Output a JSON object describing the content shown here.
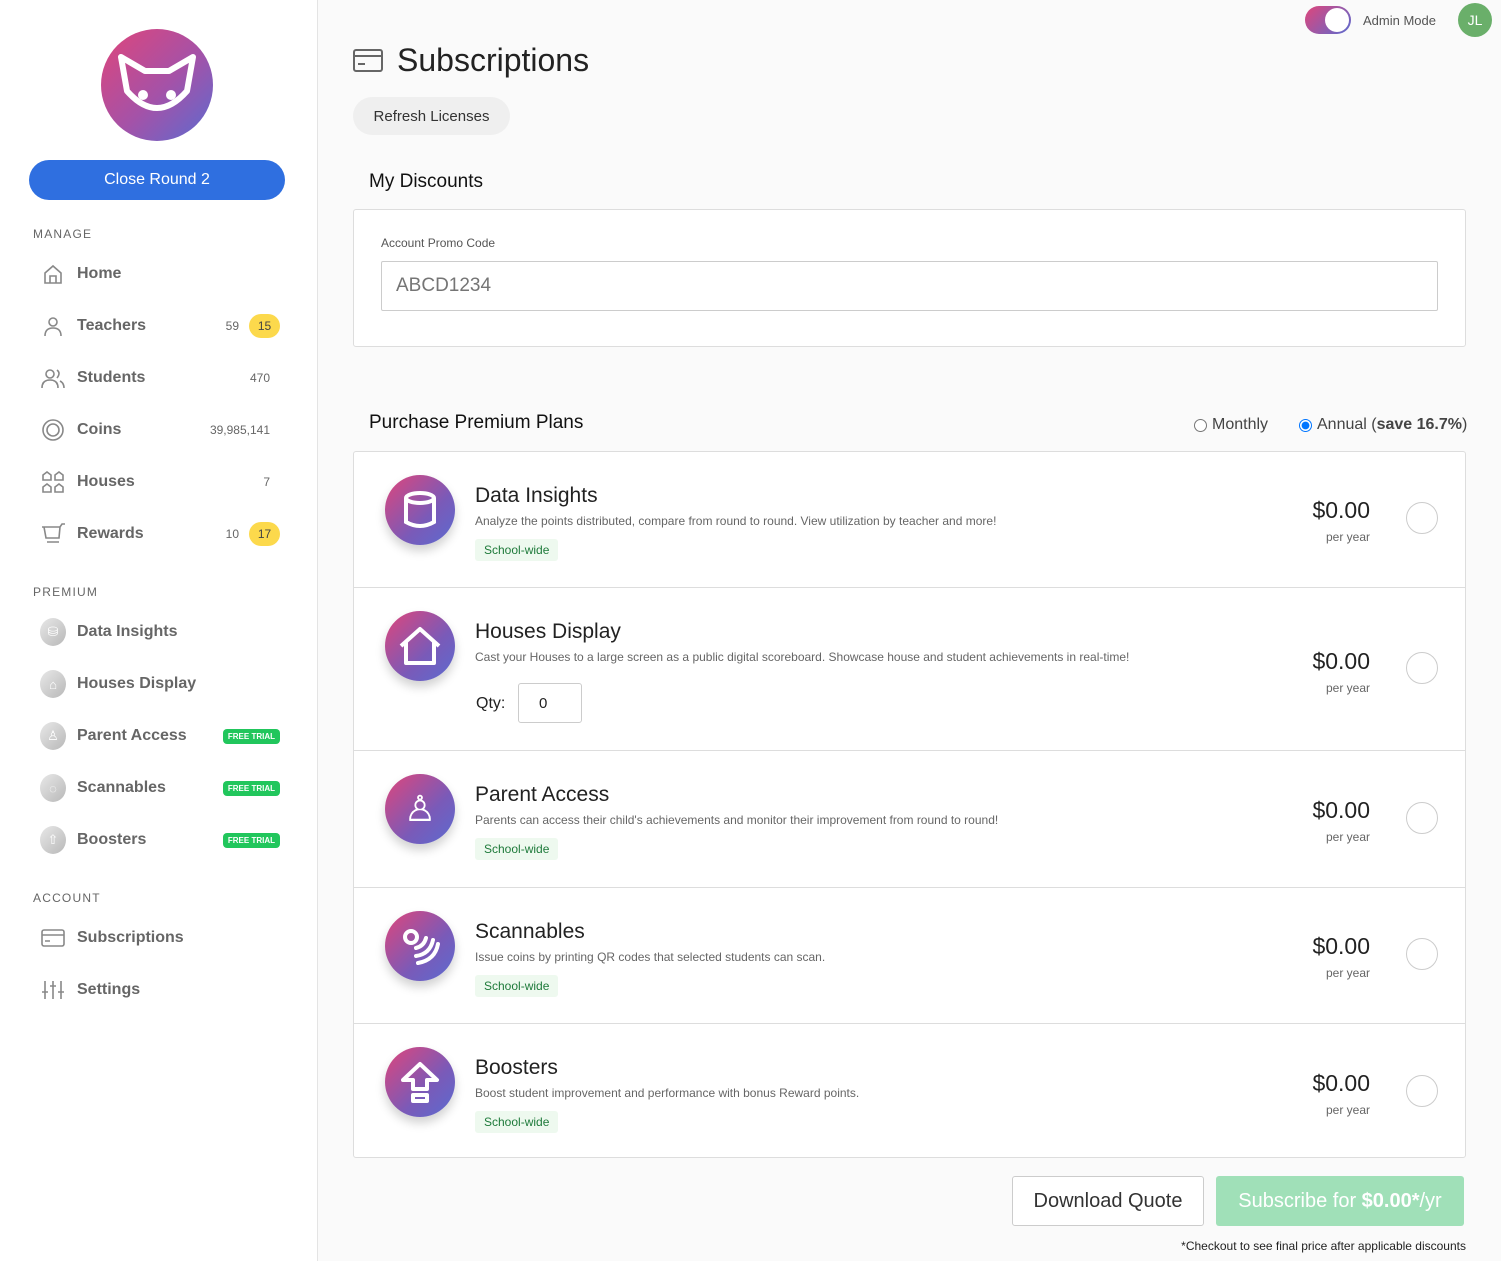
{
  "sidebar": {
    "close_round": "Close Round 2",
    "manage_label": "MANAGE",
    "manage": [
      {
        "label": "Home",
        "count": "",
        "badge": ""
      },
      {
        "label": "Teachers",
        "count": "59",
        "badge": "15"
      },
      {
        "label": "Students",
        "count": "470",
        "badge": ""
      },
      {
        "label": "Coins",
        "count": "39,985,141",
        "badge": ""
      },
      {
        "label": "Houses",
        "count": "7",
        "badge": ""
      },
      {
        "label": "Rewards",
        "count": "10",
        "badge": "17"
      }
    ],
    "premium_label": "PREMIUM",
    "premium": [
      {
        "label": "Data Insights",
        "tag": ""
      },
      {
        "label": "Houses Display",
        "tag": ""
      },
      {
        "label": "Parent Access",
        "tag": "FREE TRIAL"
      },
      {
        "label": "Scannables",
        "tag": "FREE TRIAL"
      },
      {
        "label": "Boosters",
        "tag": "FREE TRIAL"
      }
    ],
    "account_label": "ACCOUNT",
    "account": [
      {
        "label": "Subscriptions"
      },
      {
        "label": "Settings"
      }
    ],
    "badge_color": "#fcd94c",
    "trial_color": "#21c65c"
  },
  "header": {
    "admin_mode": "Admin Mode",
    "admin_mode_on": true,
    "avatar": "JL"
  },
  "page": {
    "title": "Subscriptions",
    "refresh": "Refresh Licenses"
  },
  "discounts": {
    "heading": "My Discounts",
    "promo_label": "Account Promo Code",
    "promo_placeholder": "ABCD1234"
  },
  "plans": {
    "heading": "Purchase Premium Plans",
    "monthly": "Monthly",
    "annual": "Annual (",
    "annual_save": "save 16.7%",
    "annual_close": ")",
    "billing": "annual",
    "items": [
      {
        "name": "Data Insights",
        "desc": "Analyze the points distributed, compare from round to round. View utilization by teacher and more!",
        "tag": "School-wide",
        "price": "$0.00",
        "per": "per year"
      },
      {
        "name": "Houses Display",
        "desc": "Cast your Houses to a large screen as a public digital scoreboard. Showcase house and student achievements in real-time!",
        "qty_label": "Qty:",
        "qty": "0",
        "price": "$0.00",
        "per": "per year"
      },
      {
        "name": "Parent Access",
        "desc": "Parents can access their child's achievements and monitor their improvement from round to round!",
        "tag": "School-wide",
        "price": "$0.00",
        "per": "per year"
      },
      {
        "name": "Scannables",
        "desc": "Issue coins by printing QR codes that selected students can scan.",
        "tag": "School-wide",
        "price": "$0.00",
        "per": "per year"
      },
      {
        "name": "Boosters",
        "desc": "Boost student improvement and performance with bonus Reward points.",
        "tag": "School-wide",
        "price": "$0.00",
        "per": "per year"
      }
    ]
  },
  "footer": {
    "download": "Download Quote",
    "subscribe_pre": "Subscribe for ",
    "subscribe_amount": "$0.00*",
    "subscribe_post": "/yr",
    "note": "*Checkout to see final price after applicable discounts"
  }
}
